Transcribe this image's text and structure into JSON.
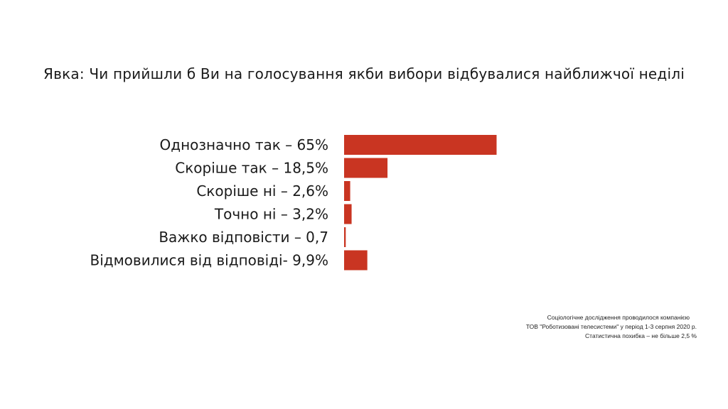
{
  "title": "Явка: Чи прийшли б Ви на голосування якби вибори відбувалися найближчої неділі",
  "note": {
    "line1": "Соціологічне дослідження проводилося компанією",
    "line2": "ТОВ \"Роботизовані телесистеми\" у період 1-3 серпня 2020 р.",
    "line3": "Статистична похибка – не більше 2,5 %"
  },
  "colors": {
    "bar": "#c93522"
  },
  "chart_data": {
    "type": "bar",
    "orientation": "horizontal",
    "title": "Явка: Чи прийшли б Ви на голосування якби вибори відбувалися найближчої неділі",
    "categories": [
      "Однозначно так – 65%",
      "Скоріше так – 18,5%",
      "Скоріше ні – 2,6%",
      "Точно ні – 3,2%",
      "Важко відповісти – 0,7",
      "Відмовилися від відповіді- 9,9%"
    ],
    "values": [
      65,
      18.5,
      2.6,
      3.2,
      0.7,
      9.9
    ],
    "xlim": [
      0,
      100
    ],
    "grid": false,
    "legend": "none"
  }
}
